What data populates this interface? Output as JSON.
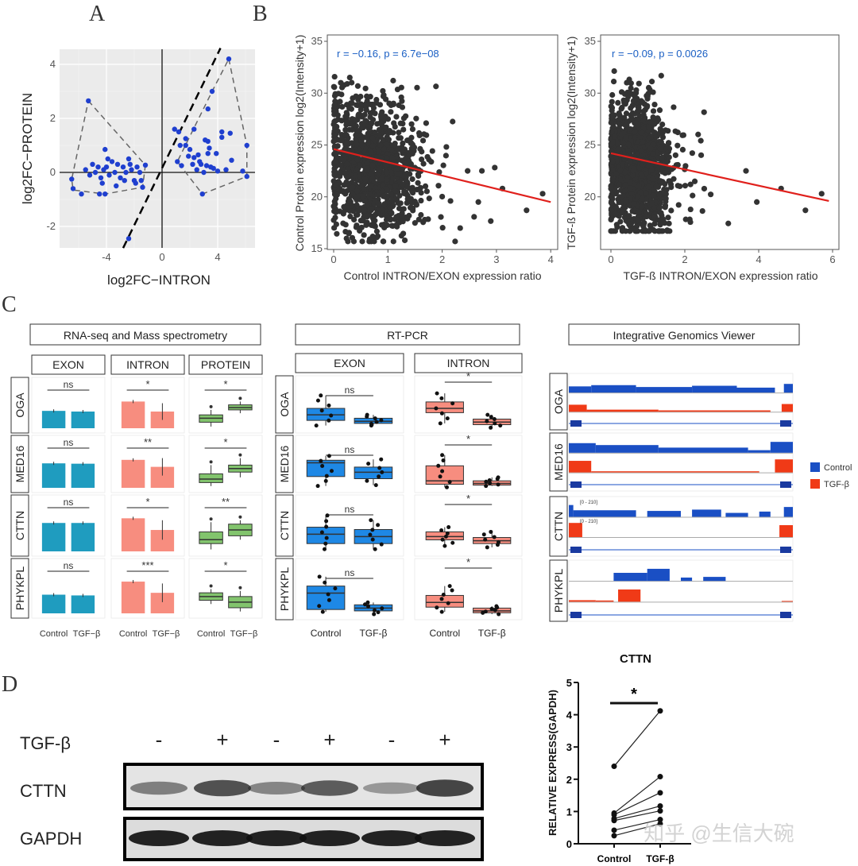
{
  "panel_labels": [
    "A",
    "B",
    "C",
    "D"
  ],
  "watermark": "知乎 @生信大碗",
  "chart_data": [
    {
      "id": "A",
      "type": "scatter",
      "xlabel": "log2FC−INTRON",
      "ylabel": "log2FC−PROTEIN",
      "xlim": [
        -6.8,
        6.6
      ],
      "ylim": [
        -2.8,
        4.6
      ],
      "xticks": [
        "-4",
        "0",
        "4"
      ],
      "xtick_values": [
        -4,
        0,
        4
      ],
      "yticks": [
        "-2",
        "0",
        "2",
        "4"
      ],
      "ytick_values": [
        -2,
        0,
        2,
        4
      ],
      "grid": true,
      "point_color": "#1f3fcf",
      "points": [
        [
          -5.3,
          2.65
        ],
        [
          -6.5,
          -0.25
        ],
        [
          -6.4,
          -0.6
        ],
        [
          -5.8,
          -0.8
        ],
        [
          -4.5,
          -0.8
        ],
        [
          -4.1,
          -0.8
        ],
        [
          -4.1,
          0.85
        ],
        [
          -1.2,
          0.27
        ],
        [
          -1.4,
          -0.55
        ],
        [
          -5.5,
          0.1
        ],
        [
          -5.0,
          0.3
        ],
        [
          -4.8,
          0.0
        ],
        [
          -4.6,
          0.2
        ],
        [
          -4.4,
          -0.2
        ],
        [
          -4.2,
          0.1
        ],
        [
          -4.0,
          0.2
        ],
        [
          -3.8,
          -0.1
        ],
        [
          -3.6,
          0.4
        ],
        [
          -3.4,
          0.0
        ],
        [
          -3.2,
          0.3
        ],
        [
          -3.0,
          -0.2
        ],
        [
          -2.8,
          0.2
        ],
        [
          -2.6,
          0.0
        ],
        [
          -2.4,
          0.5
        ],
        [
          -2.2,
          0.1
        ],
        [
          -2.0,
          -0.3
        ],
        [
          -1.8,
          0.2
        ],
        [
          -1.6,
          0.0
        ],
        [
          -1.5,
          -0.3
        ],
        [
          -5.2,
          -0.1
        ],
        [
          -4.3,
          -0.4
        ],
        [
          -3.3,
          -0.5
        ],
        [
          -2.7,
          -0.3
        ],
        [
          -3.9,
          0.5
        ],
        [
          -2.3,
          0.3
        ],
        [
          -1.9,
          -0.4
        ],
        [
          -2.4,
          -2.45
        ],
        [
          4.8,
          4.2
        ],
        [
          3.6,
          3.0
        ],
        [
          3.3,
          2.35
        ],
        [
          0.9,
          1.6
        ],
        [
          1.2,
          1.5
        ],
        [
          2.3,
          1.6
        ],
        [
          4.3,
          1.5
        ],
        [
          4.9,
          1.45
        ],
        [
          4.3,
          1.3
        ],
        [
          6.1,
          1.0
        ],
        [
          1.7,
          1.25
        ],
        [
          3.1,
          1.2
        ],
        [
          3.3,
          1.15
        ],
        [
          1.3,
          1.0
        ],
        [
          1.7,
          1.0
        ],
        [
          3.4,
          0.9
        ],
        [
          2.0,
          0.85
        ],
        [
          2.6,
          0.65
        ],
        [
          3.9,
          0.7
        ],
        [
          3.3,
          0.7
        ],
        [
          2.3,
          0.55
        ],
        [
          5.0,
          0.45
        ],
        [
          1.4,
          0.25
        ],
        [
          1.1,
          0.4
        ],
        [
          2.8,
          0.3
        ],
        [
          3.5,
          0.2
        ],
        [
          4.6,
          0.1
        ],
        [
          5.8,
          0.05
        ],
        [
          6.1,
          -0.15
        ],
        [
          2.9,
          -0.8
        ],
        [
          2.5,
          0.1
        ],
        [
          3.0,
          0.0
        ],
        [
          3.7,
          0.15
        ],
        [
          4.0,
          0.05
        ],
        [
          2.2,
          0.3
        ],
        [
          1.9,
          0.6
        ],
        [
          2.7,
          0.4
        ],
        [
          3.2,
          0.25
        ]
      ],
      "identity_line": "y = x (dashed)"
    },
    {
      "id": "B-left",
      "type": "scatter",
      "xlabel": "Control INTRON/EXON expression ratio",
      "ylabel": "Control Protein expression log2(Intensity+1)",
      "annotation": "r = −0.16, p = 6.7e−08",
      "xlim": [
        -0.2,
        4.1
      ],
      "ylim": [
        14.5,
        35.5
      ],
      "xticks": [
        "0",
        "1",
        "2",
        "3",
        "4"
      ],
      "yticks": [
        "15",
        "20",
        "25",
        "30",
        "35"
      ],
      "regression_line": {
        "x": [
          0,
          4
        ],
        "y": [
          24.6,
          19.5
        ],
        "color": "#e0201c"
      },
      "point_color": "#333333",
      "approx_point_count": 1200
    },
    {
      "id": "B-right",
      "type": "scatter",
      "xlabel": "TGF-ß INTRON/EXON expression ratio",
      "ylabel": "TGF-ß Protein expression log2(Intensity+1)",
      "annotation": "r = −0.09, p = 0.0026",
      "xlim": [
        -0.2,
        6.2
      ],
      "ylim": [
        15.5,
        35.5
      ],
      "xticks": [
        "0",
        "2",
        "4",
        "6"
      ],
      "yticks": [
        "20",
        "25",
        "30",
        "35"
      ],
      "regression_line": {
        "x": [
          0,
          5.9
        ],
        "y": [
          24.2,
          19.6
        ],
        "color": "#e0201c"
      },
      "point_color": "#333333",
      "approx_point_count": 1200
    },
    {
      "id": "C-left",
      "type": "bar",
      "title": "RNA-seq and Mass spectrometry",
      "facets": [
        "EXON",
        "INTRON",
        "PROTEIN"
      ],
      "genes": [
        "OGA",
        "MED16",
        "CTTN",
        "PHYKPL"
      ],
      "categories": [
        "Control",
        "TGF−β"
      ],
      "colors": {
        "EXON": "#1f9cbf",
        "INTRON": "#f78d7f",
        "PROTEIN": "#82c46d"
      },
      "exon": [
        [
          0.52,
          0.5
        ],
        [
          0.7,
          0.69
        ],
        [
          0.73,
          0.73
        ],
        [
          0.5,
          0.48
        ]
      ],
      "intron": [
        [
          0.8,
          0.5
        ],
        [
          0.8,
          0.6
        ],
        [
          0.85,
          0.55
        ],
        [
          0.85,
          0.55
        ]
      ],
      "protein_box": [
        [
          [
            0.05,
            0.18,
            0.3,
            0.4,
            0.55
          ],
          [
            0.45,
            0.55,
            0.62,
            0.7,
            0.8
          ]
        ],
        [
          [
            0.05,
            0.15,
            0.25,
            0.4,
            0.65
          ],
          [
            0.3,
            0.45,
            0.55,
            0.65,
            0.85
          ]
        ],
        [
          [
            0.05,
            0.2,
            0.3,
            0.5,
            0.75
          ],
          [
            0.3,
            0.4,
            0.55,
            0.7,
            0.8
          ]
        ],
        [
          [
            0.25,
            0.35,
            0.45,
            0.55,
            0.65
          ],
          [
            0.05,
            0.15,
            0.3,
            0.45,
            0.6
          ]
        ]
      ],
      "significance": [
        [
          "ns",
          "*",
          "*"
        ],
        [
          "ns",
          "**",
          "*"
        ],
        [
          "ns",
          "*",
          "**"
        ],
        [
          "ns",
          "***",
          "*"
        ]
      ]
    },
    {
      "id": "C-middle",
      "type": "box",
      "title": "RT-PCR",
      "facets": [
        "EXON",
        "INTRON"
      ],
      "genes": [
        "OGA",
        "MED16",
        "CTTN",
        "PHYKPL"
      ],
      "categories": [
        "Control",
        "TGF-β"
      ],
      "colors": {
        "EXON": "#1e88e5",
        "INTRON": "#f78d7f"
      },
      "boxes": [
        [
          [
            [
              0.1,
              0.22,
              0.35,
              0.5,
              0.8
            ],
            [
              0.1,
              0.15,
              0.2,
              0.27,
              0.35
            ]
          ],
          [
            [
              0.15,
              0.4,
              0.5,
              0.65,
              0.85
            ],
            [
              0.05,
              0.12,
              0.18,
              0.25,
              0.35
            ]
          ]
        ],
        [
          [
            [
              0.08,
              0.3,
              0.62,
              0.68,
              0.78
            ],
            [
              0.1,
              0.25,
              0.4,
              0.52,
              0.7
            ]
          ],
          [
            [
              0.05,
              0.12,
              0.2,
              0.55,
              0.8
            ],
            [
              0.08,
              0.1,
              0.14,
              0.2,
              0.28
            ]
          ]
        ],
        [
          [
            [
              0.08,
              0.2,
              0.4,
              0.55,
              0.8
            ],
            [
              0.08,
              0.2,
              0.35,
              0.5,
              0.7
            ]
          ],
          [
            [
              0.15,
              0.28,
              0.35,
              0.45,
              0.55
            ],
            [
              0.12,
              0.2,
              0.26,
              0.33,
              0.45
            ]
          ]
        ],
        [
          [
            [
              0.1,
              0.15,
              0.5,
              0.65,
              0.85
            ],
            [
              0.05,
              0.12,
              0.18,
              0.25,
              0.3
            ]
          ],
          [
            [
              0.1,
              0.2,
              0.3,
              0.45,
              0.65
            ],
            [
              0.05,
              0.08,
              0.12,
              0.18,
              0.22
            ]
          ]
        ]
      ],
      "significance": [
        [
          "ns",
          "*"
        ],
        [
          "ns",
          "*"
        ],
        [
          "ns",
          "*"
        ],
        [
          "ns",
          "*"
        ]
      ]
    },
    {
      "id": "D-right",
      "type": "line",
      "title": "CTTN",
      "ylabel": "RELATIVE EXPRESS(GAPDH)",
      "categories": [
        "Control",
        "TGF-β"
      ],
      "ylim": [
        0,
        5
      ],
      "yticks": [
        "0",
        "1",
        "2",
        "3",
        "4",
        "5"
      ],
      "pairs": [
        [
          2.4,
          4.12
        ],
        [
          0.95,
          2.08
        ],
        [
          0.9,
          1.58
        ],
        [
          0.78,
          1.17
        ],
        [
          0.72,
          1.02
        ],
        [
          0.42,
          0.75
        ],
        [
          0.25,
          0.62
        ]
      ],
      "significance": "*"
    }
  ],
  "igv": {
    "title": "Integrative Genomics Viewer",
    "genes": [
      "OGA",
      "MED16",
      "CTTN",
      "PHYKPL"
    ],
    "legend": [
      {
        "label": "Control",
        "color": "#1a4fc4"
      },
      {
        "label": "TGF-β",
        "color": "#f03a17"
      }
    ],
    "range_labels": [
      "[0 - 210]",
      "[0 - 210]"
    ]
  },
  "blot": {
    "treatment_label": "TGF-β",
    "lanes": [
      "-",
      "+",
      "-",
      "+",
      "-",
      "+"
    ],
    "rows": [
      "CTTN",
      "GAPDH"
    ],
    "cttn_intensity": [
      0.45,
      0.85,
      0.4,
      0.75,
      0.25,
      0.95
    ]
  }
}
